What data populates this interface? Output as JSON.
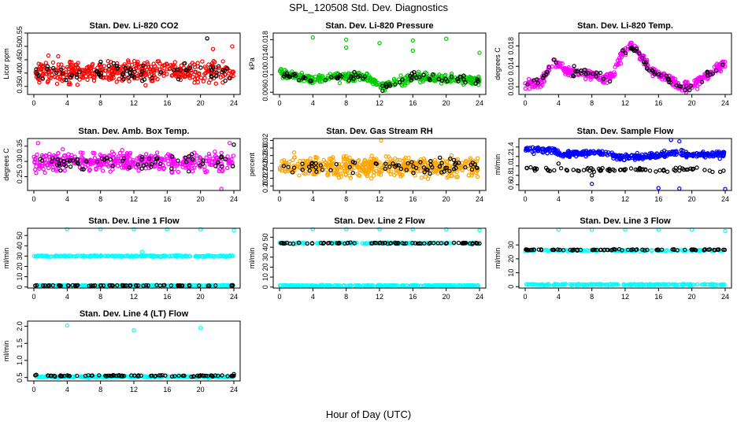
{
  "figure": {
    "title": "SPL_120508  Std. Dev. Diagnostics",
    "xlabel": "Hour of Day (UTC)"
  },
  "chart_data": [
    {
      "type": "scatter",
      "title": "Stan. Dev. Li-820 CO2",
      "ylabel": "Licor ppm",
      "xlim": [
        0,
        24
      ],
      "ylim": [
        0.32,
        0.55
      ],
      "xticks": [
        "0",
        "4",
        "8",
        "12",
        "16",
        "20",
        "24"
      ],
      "yticks": [
        "0.35",
        "0.40",
        "0.45",
        "0.50",
        "0.55"
      ],
      "series": [
        {
          "color": "#ff0000",
          "kind": "noise",
          "base": 0.405,
          "spread": 0.04,
          "count": 420,
          "outliers": [
            [
              23.8,
              0.5
            ],
            [
              21.5,
              0.49
            ]
          ]
        },
        {
          "color": "#000000",
          "kind": "noise",
          "base": 0.405,
          "spread": 0.035,
          "count": 70,
          "outliers": [
            [
              20.8,
              0.53
            ]
          ]
        }
      ]
    },
    {
      "type": "scatter",
      "title": "Stan. Dev. Li-820 Pressure",
      "ylabel": "kPa",
      "xlim": [
        0,
        24
      ],
      "ylim": [
        0.0055,
        0.0195
      ],
      "xticks": [
        "0",
        "4",
        "8",
        "12",
        "16",
        "20",
        "24"
      ],
      "yticks": [
        "0.006",
        "0.010",
        "0.014",
        "0.018"
      ],
      "series": [
        {
          "color": "#00cc00",
          "kind": "curve",
          "points": [
            [
              0,
              0.0102
            ],
            [
              2,
              0.0096
            ],
            [
              4,
              0.0089
            ],
            [
              6,
              0.0097
            ],
            [
              8,
              0.0094
            ],
            [
              10,
              0.0097
            ],
            [
              11.5,
              0.0083
            ],
            [
              12.5,
              0.0072
            ],
            [
              14,
              0.0082
            ],
            [
              16,
              0.0096
            ],
            [
              18,
              0.0093
            ],
            [
              20,
              0.009
            ],
            [
              22,
              0.009
            ],
            [
              24,
              0.0087
            ]
          ],
          "spread": 0.001,
          "count": 380,
          "outliers": [
            [
              4,
              0.0185
            ],
            [
              8,
              0.018
            ],
            [
              8,
              0.0162
            ],
            [
              12,
              0.0172
            ],
            [
              16,
              0.0178
            ],
            [
              16,
              0.0155
            ],
            [
              20,
              0.0182
            ],
            [
              24,
              0.015
            ],
            [
              0.2,
              0.0113
            ]
          ]
        },
        {
          "color": "#000000",
          "kind": "curve",
          "points": [
            [
              0,
              0.0102
            ],
            [
              2,
              0.0096
            ],
            [
              4,
              0.0089
            ],
            [
              6,
              0.0097
            ],
            [
              8,
              0.0094
            ],
            [
              10,
              0.0097
            ],
            [
              11.5,
              0.0083
            ],
            [
              12.5,
              0.0072
            ],
            [
              14,
              0.0082
            ],
            [
              16,
              0.0096
            ],
            [
              18,
              0.0093
            ],
            [
              20,
              0.009
            ],
            [
              22,
              0.009
            ],
            [
              24,
              0.0087
            ]
          ],
          "spread": 0.0009,
          "count": 70,
          "outliers": []
        }
      ]
    },
    {
      "type": "scatter",
      "title": "Stan. Dev. Li-820 Temp.",
      "ylabel": "degrees C",
      "xlim": [
        0,
        24
      ],
      "ylim": [
        0.0085,
        0.0205
      ],
      "xticks": [
        "0",
        "4",
        "8",
        "12",
        "16",
        "20",
        "24"
      ],
      "yticks": [
        "0.010",
        "0.014",
        "0.018"
      ],
      "series": [
        {
          "color": "#ff00ff",
          "kind": "curve",
          "points": [
            [
              0,
              0.0105
            ],
            [
              2,
              0.011
            ],
            [
              3.5,
              0.015
            ],
            [
              5,
              0.013
            ],
            [
              7,
              0.0128
            ],
            [
              9,
              0.0118
            ],
            [
              10.5,
              0.012
            ],
            [
              11.5,
              0.016
            ],
            [
              12.5,
              0.018
            ],
            [
              13.5,
              0.0168
            ],
            [
              15,
              0.0132
            ],
            [
              17,
              0.012
            ],
            [
              18.5,
              0.01
            ],
            [
              20,
              0.0102
            ],
            [
              22,
              0.0125
            ],
            [
              24,
              0.0148
            ]
          ],
          "spread": 0.0009,
          "count": 400,
          "outliers": []
        },
        {
          "color": "#000000",
          "kind": "curve",
          "points": [
            [
              0,
              0.0105
            ],
            [
              2,
              0.011
            ],
            [
              3.5,
              0.015
            ],
            [
              5,
              0.013
            ],
            [
              7,
              0.0128
            ],
            [
              9,
              0.0118
            ],
            [
              10.5,
              0.012
            ],
            [
              11.5,
              0.016
            ],
            [
              12.5,
              0.018
            ],
            [
              13.5,
              0.0168
            ],
            [
              15,
              0.0132
            ],
            [
              17,
              0.012
            ],
            [
              18.5,
              0.01
            ],
            [
              20,
              0.0102
            ],
            [
              22,
              0.0125
            ],
            [
              24,
              0.0148
            ]
          ],
          "spread": 0.0008,
          "count": 70,
          "outliers": []
        }
      ]
    },
    {
      "type": "scatter",
      "title": "Stan. Dev. Amb. Box Temp.",
      "ylabel": "degrees C",
      "xlim": [
        0,
        24
      ],
      "ylim": [
        0.205,
        0.375
      ],
      "xticks": [
        "0",
        "4",
        "8",
        "12",
        "16",
        "20",
        "24"
      ],
      "yticks": [
        "0.25",
        "0.30",
        "0.35"
      ],
      "series": [
        {
          "color": "#ff00ff",
          "kind": "noise",
          "base": 0.3,
          "spread": 0.028,
          "count": 420,
          "outliers": [
            [
              22.5,
              0.21
            ],
            [
              0.5,
              0.36
            ],
            [
              23.5,
              0.36
            ]
          ]
        },
        {
          "color": "#000000",
          "kind": "noise",
          "base": 0.3,
          "spread": 0.025,
          "count": 70,
          "outliers": [
            [
              24,
              0.355
            ]
          ]
        }
      ]
    },
    {
      "type": "scatter",
      "title": "Stan. Dev. Gas Stream RH",
      "ylabel": "percent",
      "xlim": [
        0,
        24
      ],
      "ylim": [
        0.188,
        0.325
      ],
      "xticks": [
        "0",
        "4",
        "8",
        "12",
        "16",
        "20",
        "24"
      ],
      "yticks": [
        "0.20",
        "0.22",
        "0.24",
        "0.26",
        "0.28",
        "0.30",
        "0.32"
      ],
      "series": [
        {
          "color": "#ffa500",
          "kind": "noise",
          "base": 0.25,
          "spread": 0.025,
          "count": 500,
          "outliers": [
            [
              12.2,
              0.32
            ]
          ]
        },
        {
          "color": "#000000",
          "kind": "noise",
          "base": 0.25,
          "spread": 0.02,
          "count": 70,
          "outliers": []
        }
      ]
    },
    {
      "type": "scatter",
      "title": "Stan. Dev. Sample Flow",
      "ylabel": "ml/min",
      "xlim": [
        0,
        24
      ],
      "ylim": [
        0.48,
        1.58
      ],
      "xticks": [
        "0",
        "4",
        "8",
        "12",
        "16",
        "20",
        "24"
      ],
      "yticks": [
        "0.6",
        "0.8",
        "1.0",
        "1.2",
        "1.4"
      ],
      "series": [
        {
          "color": "#0000ff",
          "kind": "curve",
          "points": [
            [
              0,
              1.35
            ],
            [
              3.5,
              1.33
            ],
            [
              4.3,
              1.22
            ],
            [
              6,
              1.28
            ],
            [
              10,
              1.27
            ],
            [
              11,
              1.18
            ],
            [
              12,
              1.18
            ],
            [
              16,
              1.22
            ],
            [
              18,
              1.3
            ],
            [
              20,
              1.22
            ],
            [
              24,
              1.25
            ]
          ],
          "spread": 0.06,
          "count": 380,
          "outliers": [
            [
              16,
              0.53
            ],
            [
              18.5,
              0.52
            ],
            [
              24,
              0.51
            ],
            [
              8,
              0.62
            ],
            [
              17.5,
              1.55
            ],
            [
              18.5,
              1.52
            ]
          ]
        },
        {
          "color": "#000000",
          "kind": "curve",
          "points": [
            [
              0,
              0.95
            ],
            [
              4,
              0.92
            ],
            [
              8,
              0.92
            ],
            [
              12,
              0.92
            ],
            [
              16,
              0.92
            ],
            [
              20,
              0.92
            ],
            [
              24,
              0.9
            ]
          ],
          "spread": 0.04,
          "count": 80,
          "outliers": [
            [
              4,
              1.05
            ],
            [
              8,
              0.8
            ]
          ]
        }
      ]
    },
    {
      "type": "scatter",
      "title": "Stan. Dev. Line 1 Flow",
      "ylabel": "ml/min",
      "xlim": [
        0,
        24
      ],
      "ylim": [
        -1,
        57
      ],
      "xticks": [
        "0",
        "4",
        "8",
        "12",
        "16",
        "20",
        "24"
      ],
      "yticks": [
        "0",
        "10",
        "20",
        "30",
        "40",
        "50"
      ],
      "series": [
        {
          "color": "#00ffff",
          "kind": "band",
          "base": 30,
          "spread": 0.6,
          "count": 260,
          "outliers": [
            [
              4,
              56
            ],
            [
              8,
              56
            ],
            [
              12,
              56
            ],
            [
              16,
              56
            ],
            [
              20,
              56
            ],
            [
              24,
              55
            ],
            [
              13,
              34
            ]
          ]
        },
        {
          "color": "#00ffff",
          "kind": "band",
          "base": 1.5,
          "spread": 0.4,
          "count": 200,
          "outliers": []
        },
        {
          "color": "#000000",
          "kind": "band",
          "base": 1.5,
          "spread": 0.4,
          "count": 70,
          "outliers": []
        }
      ]
    },
    {
      "type": "scatter",
      "title": "Stan. Dev. Line 2 Flow",
      "ylabel": "ml/min",
      "xlim": [
        0,
        24
      ],
      "ylim": [
        -1,
        59
      ],
      "xticks": [
        "0",
        "4",
        "8",
        "12",
        "16",
        "20",
        "24"
      ],
      "yticks": [
        "0",
        "10",
        "20",
        "30",
        "40",
        "50"
      ],
      "series": [
        {
          "color": "#00ffff",
          "kind": "band",
          "base": 44,
          "spread": 0.6,
          "count": 150,
          "outliers": [
            [
              4,
              58
            ],
            [
              8,
              58
            ],
            [
              12,
              58
            ],
            [
              16,
              58
            ],
            [
              20,
              58
            ],
            [
              24,
              57
            ]
          ]
        },
        {
          "color": "#000000",
          "kind": "band",
          "base": 44,
          "spread": 0.6,
          "count": 80,
          "outliers": []
        },
        {
          "color": "#00ffff",
          "kind": "band",
          "base": 1.5,
          "spread": 0.4,
          "count": 240,
          "outliers": []
        }
      ]
    },
    {
      "type": "scatter",
      "title": "Stan. Dev. Line 3 Flow",
      "ylabel": "ml/min",
      "xlim": [
        0,
        24
      ],
      "ylim": [
        -1,
        42
      ],
      "xticks": [
        "0",
        "4",
        "8",
        "12",
        "16",
        "20",
        "24"
      ],
      "yticks": [
        "0",
        "10",
        "20",
        "30"
      ],
      "series": [
        {
          "color": "#00ffff",
          "kind": "band",
          "base": 26,
          "spread": 0.5,
          "count": 150,
          "outliers": [
            [
              4,
              41
            ],
            [
              8,
              41
            ],
            [
              12,
              41
            ],
            [
              16,
              41
            ],
            [
              20,
              41
            ],
            [
              24,
              40
            ]
          ]
        },
        {
          "color": "#000000",
          "kind": "band",
          "base": 26.5,
          "spread": 0.4,
          "count": 80,
          "outliers": []
        },
        {
          "color": "#00ffff",
          "kind": "band",
          "base": 1.5,
          "spread": 0.4,
          "count": 240,
          "outliers": []
        }
      ]
    },
    {
      "type": "scatter",
      "title": "Stan. Dev. Line 4 (LT) Flow",
      "ylabel": "ml/min",
      "xlim": [
        0,
        24
      ],
      "ylim": [
        0.4,
        2.15
      ],
      "xticks": [
        "0",
        "4",
        "8",
        "12",
        "16",
        "20",
        "24"
      ],
      "yticks": [
        "0.5",
        "1.0",
        "1.5",
        "2.0"
      ],
      "series": [
        {
          "color": "#00ffff",
          "kind": "band",
          "base": 0.52,
          "spread": 0.02,
          "count": 260,
          "outliers": [
            [
              4,
              2.02
            ],
            [
              12,
              1.88
            ],
            [
              20,
              1.95
            ]
          ]
        },
        {
          "color": "#000000",
          "kind": "band",
          "base": 0.55,
          "spread": 0.02,
          "count": 80,
          "outliers": [
            [
              24,
              0.6
            ]
          ]
        }
      ]
    }
  ]
}
